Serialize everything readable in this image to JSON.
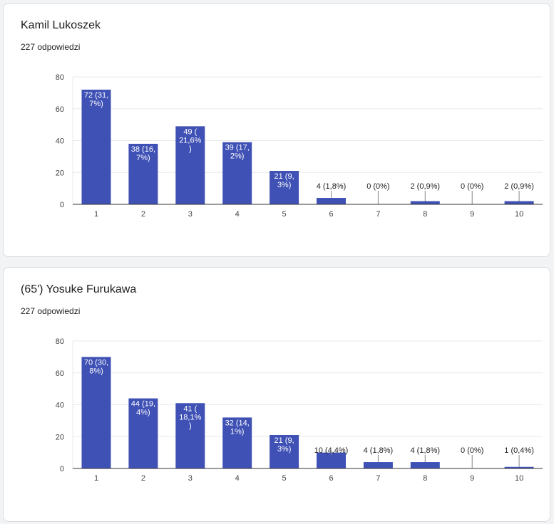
{
  "charts": [
    {
      "title": "Kamil Lukoszek",
      "subtitle": "227 odpowiedzi"
    },
    {
      "title": "(65') Yosuke Furukawa",
      "subtitle": "227 odpowiedzi"
    }
  ],
  "colors": {
    "bar": "#3f51b5",
    "grid": "#e8e8e8",
    "axis": "#333333",
    "tick_text": "#444444",
    "label_inside": "#ffffff",
    "label_outside": "#222222"
  },
  "chart_data": [
    {
      "type": "bar",
      "title": "Kamil Lukoszek",
      "categories": [
        "1",
        "2",
        "3",
        "4",
        "5",
        "6",
        "7",
        "8",
        "9",
        "10"
      ],
      "values": [
        72,
        38,
        49,
        39,
        21,
        4,
        0,
        2,
        0,
        2
      ],
      "data_labels": [
        [
          "72 (31,",
          "7%)"
        ],
        [
          "38 (16,",
          "7%)"
        ],
        [
          "49 (",
          "21,6%",
          ")"
        ],
        [
          "39 (17,",
          "2%)"
        ],
        [
          "21 (9,",
          "3%)"
        ],
        [
          "4 (1,8%)"
        ],
        [
          "0 (0%)"
        ],
        [
          "2 (0,9%)"
        ],
        [
          "0 (0%)"
        ],
        [
          "2 (0,9%)"
        ]
      ],
      "y_ticks": [
        0,
        20,
        40,
        60,
        80
      ],
      "ylim": [
        0,
        80
      ],
      "grid": true,
      "legend": "none"
    },
    {
      "type": "bar",
      "title": "(65') Yosuke Furukawa",
      "categories": [
        "1",
        "2",
        "3",
        "4",
        "5",
        "6",
        "7",
        "8",
        "9",
        "10"
      ],
      "values": [
        70,
        44,
        41,
        32,
        21,
        10,
        4,
        4,
        0,
        1
      ],
      "data_labels": [
        [
          "70 (30,",
          "8%)"
        ],
        [
          "44 (19,",
          "4%)"
        ],
        [
          "41 (",
          "18,1%",
          ")"
        ],
        [
          "32 (14,",
          "1%)"
        ],
        [
          "21 (9,",
          "3%)"
        ],
        [
          "10 (4,4%)"
        ],
        [
          "4 (1,8%)"
        ],
        [
          "4 (1,8%)"
        ],
        [
          "0 (0%)"
        ],
        [
          "1 (0,4%)"
        ]
      ],
      "y_ticks": [
        0,
        20,
        40,
        60,
        80
      ],
      "ylim": [
        0,
        80
      ],
      "grid": true,
      "legend": "none"
    }
  ]
}
